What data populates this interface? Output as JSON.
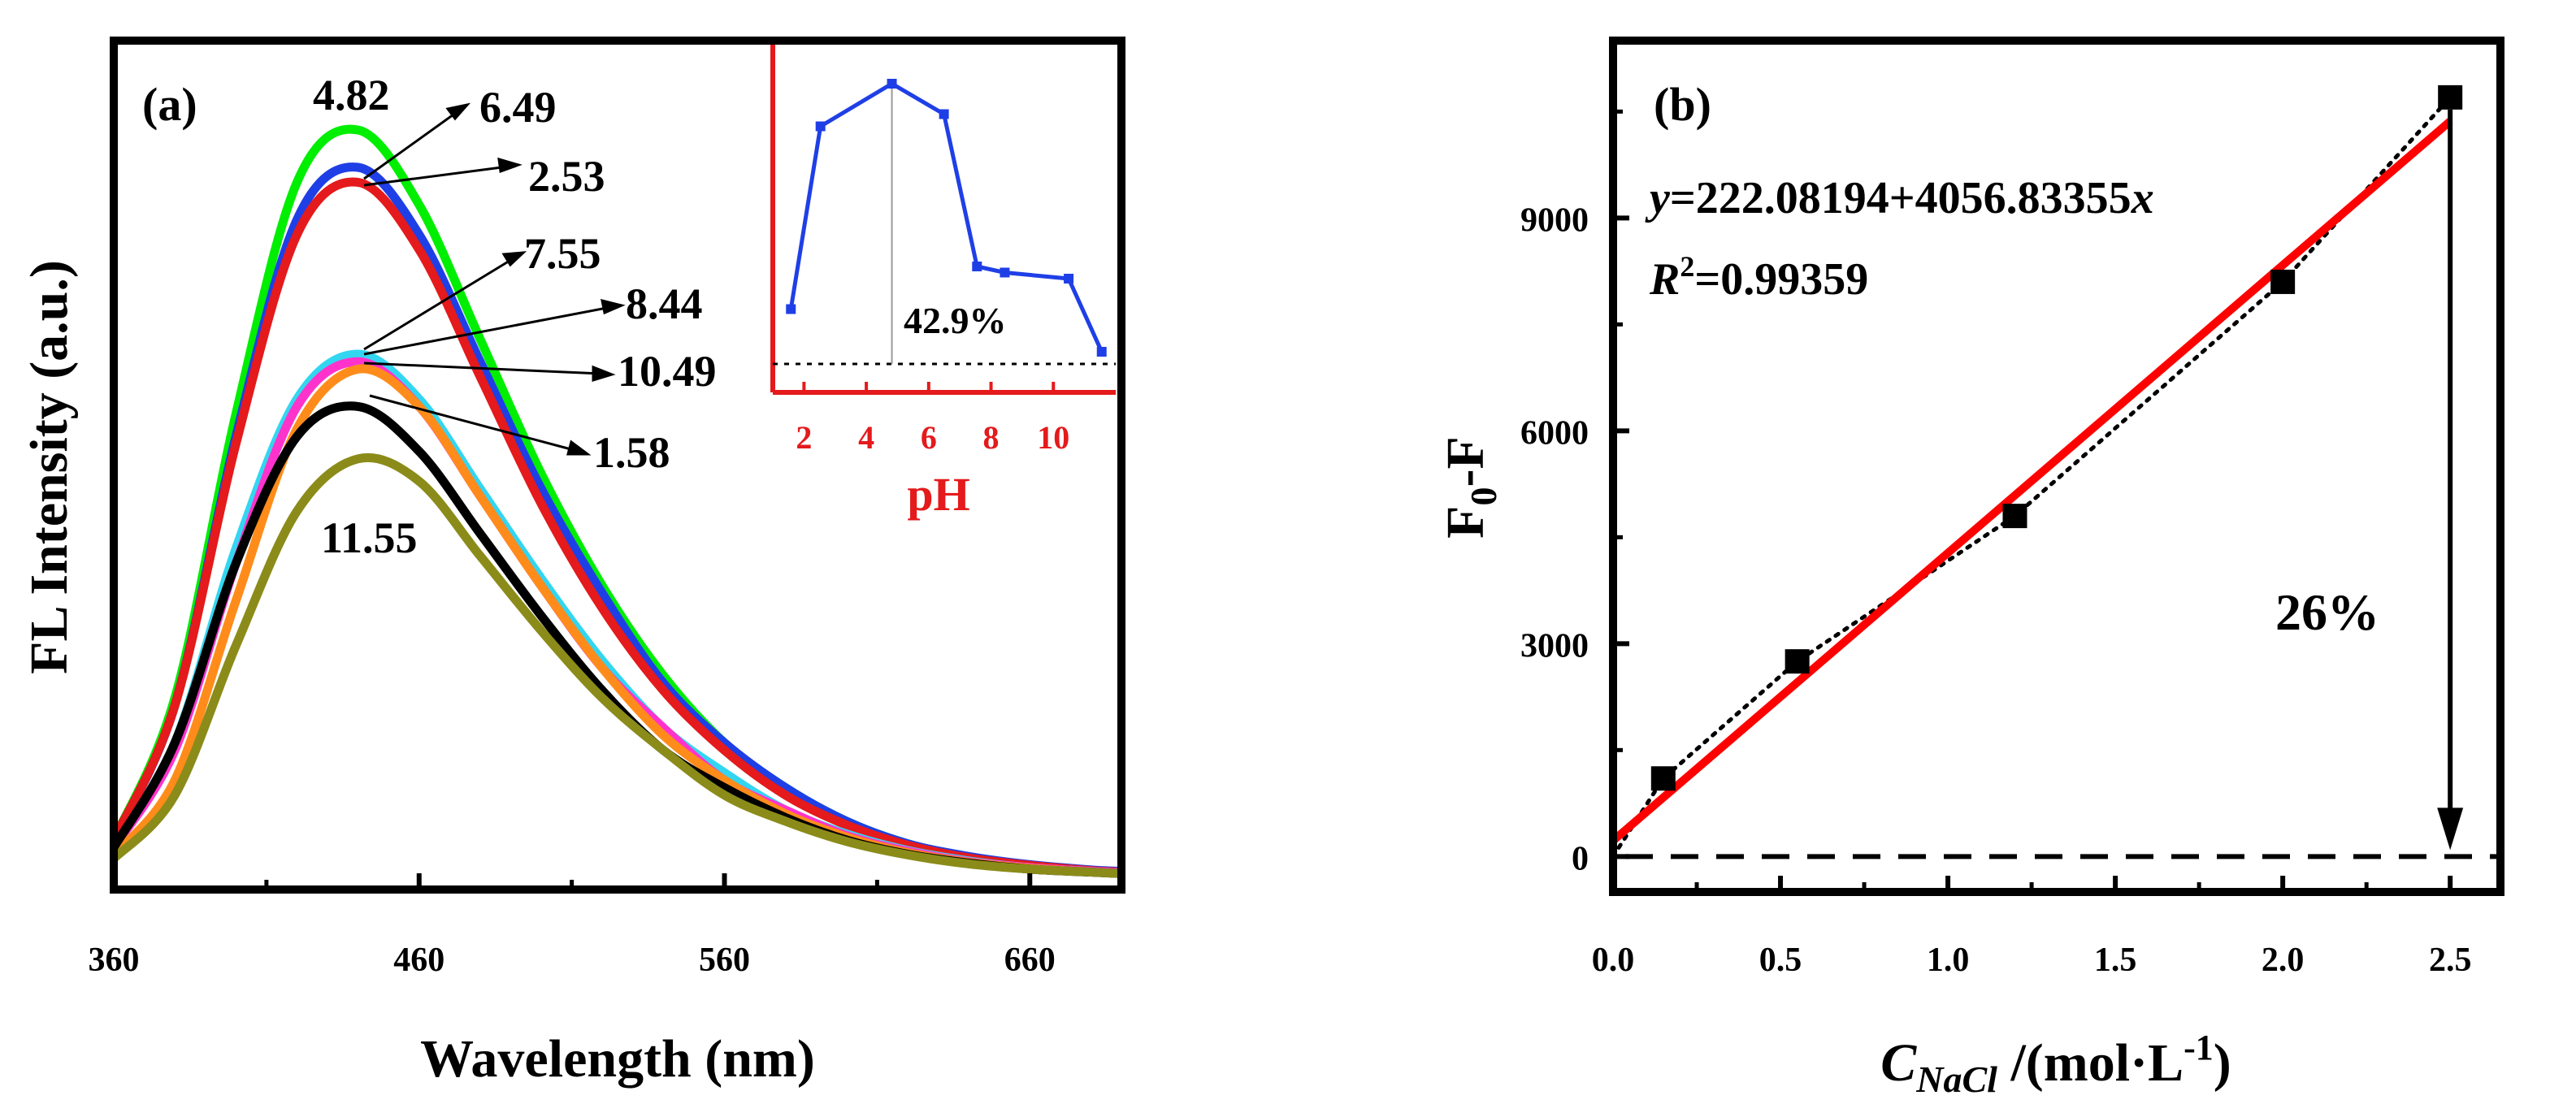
{
  "chart_data": [
    {
      "panel": "(a)",
      "type": "line",
      "xlabel": "Wavelength (nm)",
      "ylabel": "FL Intensity (a.u.)",
      "xlim": [
        360,
        690
      ],
      "ylim": [
        0,
        1.0
      ],
      "xticks": [
        360,
        460,
        560,
        660
      ],
      "x": [
        360,
        380,
        400,
        420,
        440,
        460,
        480,
        500,
        520,
        540,
        560,
        580,
        600,
        620,
        640,
        660,
        680,
        690
      ],
      "series": [
        {
          "name": "4.82",
          "color": "#00ee00",
          "values": [
            0.05,
            0.24,
            0.62,
            0.93,
            1.0,
            0.9,
            0.72,
            0.54,
            0.39,
            0.27,
            0.18,
            0.12,
            0.075,
            0.045,
            0.027,
            0.016,
            0.009,
            0.007
          ]
        },
        {
          "name": "6.49",
          "color": "#1f3fe6",
          "values": [
            0.05,
            0.23,
            0.59,
            0.88,
            0.95,
            0.86,
            0.69,
            0.52,
            0.38,
            0.26,
            0.18,
            0.12,
            0.075,
            0.045,
            0.028,
            0.017,
            0.01,
            0.008
          ]
        },
        {
          "name": "2.53",
          "color": "#e41a1c",
          "values": [
            0.05,
            0.23,
            0.58,
            0.86,
            0.93,
            0.84,
            0.67,
            0.5,
            0.36,
            0.25,
            0.17,
            0.11,
            0.07,
            0.043,
            0.026,
            0.016,
            0.009,
            0.007
          ]
        },
        {
          "name": "7.55",
          "color": "#33d6f0",
          "values": [
            0.04,
            0.18,
            0.44,
            0.64,
            0.7,
            0.64,
            0.52,
            0.4,
            0.29,
            0.2,
            0.14,
            0.09,
            0.058,
            0.036,
            0.022,
            0.013,
            0.008,
            0.006
          ]
        },
        {
          "name": "8.44",
          "color": "#ff33cc",
          "values": [
            0.04,
            0.17,
            0.42,
            0.63,
            0.69,
            0.63,
            0.51,
            0.39,
            0.28,
            0.2,
            0.13,
            0.09,
            0.056,
            0.035,
            0.021,
            0.013,
            0.008,
            0.006
          ]
        },
        {
          "name": "10.49",
          "color": "#ff8c1a",
          "values": [
            0.03,
            0.13,
            0.37,
            0.6,
            0.68,
            0.63,
            0.51,
            0.39,
            0.28,
            0.19,
            0.13,
            0.085,
            0.054,
            0.033,
            0.02,
            0.012,
            0.007,
            0.005
          ]
        },
        {
          "name": "1.58",
          "color": "#000000",
          "values": [
            0.04,
            0.18,
            0.42,
            0.59,
            0.63,
            0.57,
            0.46,
            0.35,
            0.25,
            0.17,
            0.12,
            0.08,
            0.05,
            0.031,
            0.019,
            0.011,
            0.007,
            0.005
          ]
        },
        {
          "name": "11.55",
          "color": "#8b8b1a",
          "values": [
            0.025,
            0.11,
            0.31,
            0.49,
            0.56,
            0.53,
            0.43,
            0.33,
            0.24,
            0.17,
            0.11,
            0.075,
            0.048,
            0.03,
            0.018,
            0.011,
            0.007,
            0.005
          ]
        }
      ],
      "peak_labels": [
        "4.82",
        "6.49",
        "2.53",
        "7.55",
        "8.44",
        "10.49",
        "1.58",
        "11.55"
      ],
      "inset": {
        "type": "line",
        "xlabel": "pH",
        "xticks": [
          "2",
          "4",
          "6",
          "8",
          "10"
        ],
        "x": [
          1.58,
          2.53,
          4.82,
          6.49,
          7.55,
          8.44,
          10.49,
          11.55
        ],
        "values": [
          0.63,
          0.93,
          1.0,
          0.95,
          0.7,
          0.69,
          0.68,
          0.56
        ],
        "color": "#1f3fe6",
        "annotation": "42.9%",
        "xlim": [
          1,
          12
        ],
        "ylim": [
          0.54,
          1.02
        ]
      }
    },
    {
      "panel": "(b)",
      "type": "scatter",
      "xlabel_main": "C",
      "xlabel_sub": "NaCl",
      "xlabel_rest": " /(mol·L",
      "xlabel_sup": "-1",
      "xlabel_end": ")",
      "ylabel_main": "F",
      "ylabel_sub": "0",
      "ylabel_rest": "-F",
      "xlim": [
        0,
        2.65
      ],
      "ylim": [
        -500,
        11500
      ],
      "xticks": [
        "0.0",
        "0.5",
        "1.0",
        "1.5",
        "2.0",
        "2.5"
      ],
      "yticks": [
        "0",
        "3000",
        "6000",
        "9000"
      ],
      "x": [
        0.15,
        0.55,
        1.2,
        2.0,
        2.5
      ],
      "y": [
        1100,
        2750,
        4800,
        8100,
        10700
      ],
      "fit": {
        "intercept": 222.08194,
        "slope": 4056.83355,
        "color": "#ff0000"
      },
      "equation_y": "y",
      "equation_body": "=222.08194+4056.83355",
      "equation_x": "x",
      "r2_main": "R",
      "r2_sup": "2",
      "r2_value": "=0.99359",
      "arrow_label": "26%"
    }
  ]
}
